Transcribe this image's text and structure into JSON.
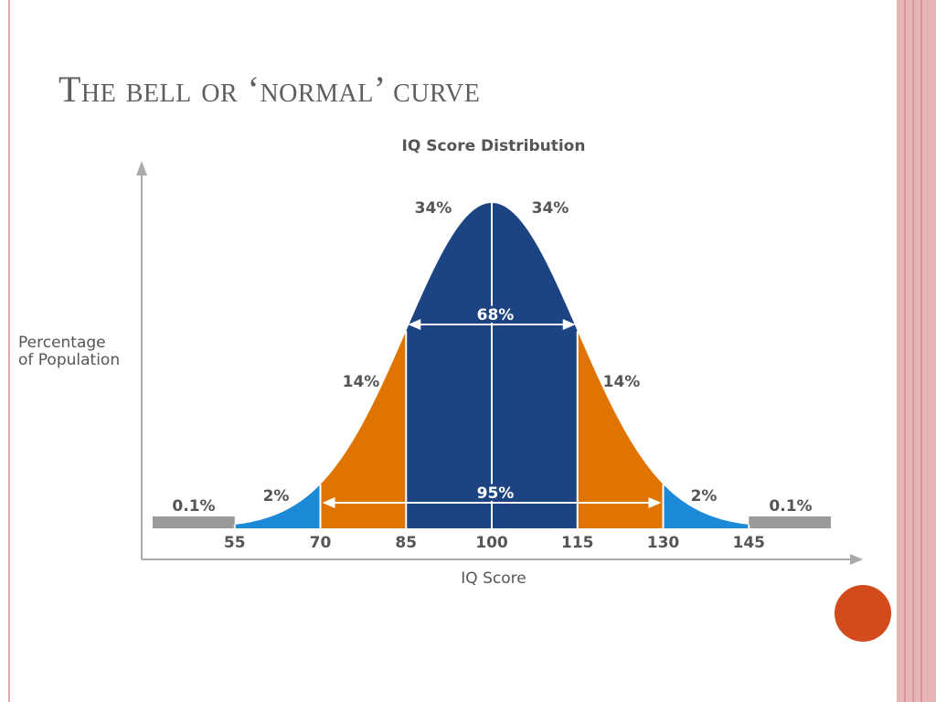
{
  "slide": {
    "title": "The bell or ‘normal’ curve"
  },
  "colors": {
    "navy": "#1c4382",
    "orange": "#df7500",
    "blue": "#1d8ad8",
    "gray": "#9a9a9a",
    "text": "#555555",
    "axis": "#aaaaaa",
    "accent_circle": "#d34a1c",
    "rule": "#e8b5b5"
  },
  "chart_data": {
    "type": "area",
    "title": "IQ Score Distribution",
    "xlabel": "IQ Score",
    "ylabel": "Percentage of Population",
    "ylabel_lines": [
      "Percentage",
      "of Population"
    ],
    "x_ticks": [
      55,
      70,
      85,
      100,
      115,
      130,
      145
    ],
    "distribution": {
      "mean": 100,
      "sd": 15
    },
    "bands": [
      {
        "from": 40,
        "to": 55,
        "percent": "0.1%",
        "color": "gray"
      },
      {
        "from": 55,
        "to": 70,
        "percent": "2%",
        "color": "blue"
      },
      {
        "from": 70,
        "to": 85,
        "percent": "14%",
        "color": "orange"
      },
      {
        "from": 85,
        "to": 100,
        "percent": "34%",
        "color": "navy"
      },
      {
        "from": 100,
        "to": 115,
        "percent": "34%",
        "color": "navy"
      },
      {
        "from": 115,
        "to": 130,
        "percent": "14%",
        "color": "orange"
      },
      {
        "from": 130,
        "to": 145,
        "percent": "2%",
        "color": "blue"
      },
      {
        "from": 145,
        "to": 160,
        "percent": "0.1%",
        "color": "gray"
      }
    ],
    "spans": [
      {
        "label": "68%",
        "from": 85,
        "to": 115
      },
      {
        "label": "95%",
        "from": 70,
        "to": 130
      }
    ]
  }
}
